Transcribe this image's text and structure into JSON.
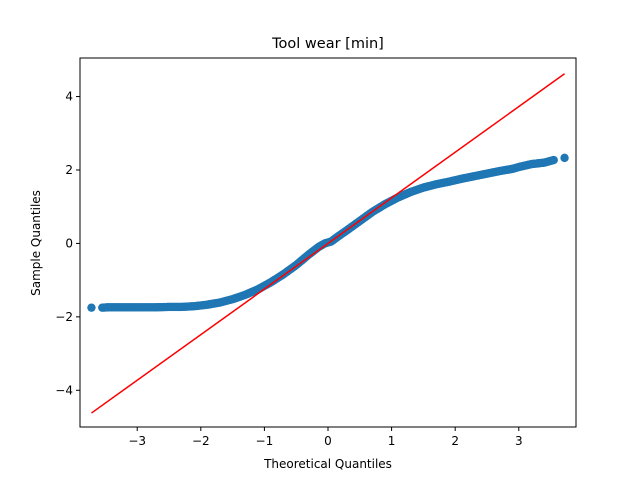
{
  "chart_data": {
    "type": "scatter",
    "title": "Tool wear [min]",
    "xlabel": "Theoretical Quantiles",
    "ylabel": "Sample Quantiles",
    "xlim": [
      -3.9,
      3.9
    ],
    "ylim": [
      -5.0,
      5.05
    ],
    "xticks": [
      -3,
      -2,
      -1,
      0,
      1,
      2,
      3
    ],
    "xtick_labels": [
      "−3",
      "−2",
      "−1",
      "0",
      "1",
      "2",
      "3"
    ],
    "yticks": [
      -4,
      -2,
      0,
      2,
      4
    ],
    "ytick_labels": [
      "−4",
      "−2",
      "0",
      "2",
      "4"
    ],
    "grid": false,
    "legend": "none",
    "colors": {
      "points": "#1f77b4",
      "reference_line": "#ff0000"
    },
    "series": [
      {
        "kind": "points",
        "x": [
          -3.72,
          -3.55,
          -3.45,
          -3.3,
          -3.1,
          -2.9,
          -2.7,
          -2.5,
          -2.3,
          -2.1,
          -1.9,
          -1.7,
          -1.5,
          -1.3,
          -1.1,
          -0.9,
          -0.7,
          -0.5,
          -0.3,
          -0.15,
          -0.05,
          0.05,
          0.15,
          0.3,
          0.5,
          0.7,
          0.9,
          1.1,
          1.3,
          1.5,
          1.7,
          1.9,
          2.1,
          2.3,
          2.5,
          2.7,
          2.9,
          3.0,
          3.1,
          3.2,
          3.3,
          3.4,
          3.55,
          3.72
        ],
        "y": [
          -1.75,
          -1.75,
          -1.74,
          -1.74,
          -1.74,
          -1.74,
          -1.74,
          -1.73,
          -1.73,
          -1.71,
          -1.67,
          -1.61,
          -1.52,
          -1.4,
          -1.25,
          -1.06,
          -0.84,
          -0.59,
          -0.3,
          -0.1,
          0.0,
          0.05,
          0.18,
          0.36,
          0.61,
          0.86,
          1.07,
          1.25,
          1.4,
          1.52,
          1.61,
          1.68,
          1.76,
          1.83,
          1.9,
          1.97,
          2.03,
          2.08,
          2.12,
          2.16,
          2.18,
          2.2,
          2.27,
          2.33
        ]
      },
      {
        "kind": "line",
        "x": [
          -3.72,
          3.72
        ],
        "y": [
          -4.62,
          4.62
        ]
      }
    ]
  }
}
